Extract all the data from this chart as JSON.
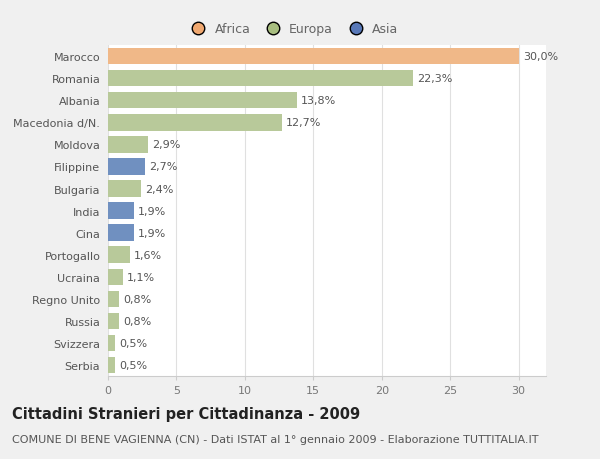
{
  "categories": [
    "Serbia",
    "Svizzera",
    "Russia",
    "Regno Unito",
    "Ucraina",
    "Portogallo",
    "Cina",
    "India",
    "Bulgaria",
    "Filippine",
    "Moldova",
    "Macedonia d/N.",
    "Albania",
    "Romania",
    "Marocco"
  ],
  "values": [
    0.5,
    0.5,
    0.8,
    0.8,
    1.1,
    1.6,
    1.9,
    1.9,
    2.4,
    2.7,
    2.9,
    12.7,
    13.8,
    22.3,
    30.0
  ],
  "labels": [
    "0,5%",
    "0,5%",
    "0,8%",
    "0,8%",
    "1,1%",
    "1,6%",
    "1,9%",
    "1,9%",
    "2,4%",
    "2,7%",
    "2,9%",
    "12,7%",
    "13,8%",
    "22,3%",
    "30,0%"
  ],
  "continents": [
    "Europa",
    "Europa",
    "Europa",
    "Europa",
    "Europa",
    "Europa",
    "Asia",
    "Asia",
    "Europa",
    "Asia",
    "Europa",
    "Europa",
    "Europa",
    "Europa",
    "Africa"
  ],
  "bar_colors": {
    "Africa": "#F0B888",
    "Europa": "#B8C99A",
    "Asia": "#7090C0"
  },
  "legend_colors": {
    "Africa": "#F0A870",
    "Europa": "#A8BE80",
    "Asia": "#5878B8"
  },
  "xlim": [
    0,
    32
  ],
  "xticks": [
    0,
    5,
    10,
    15,
    20,
    25,
    30
  ],
  "title": "Cittadini Stranieri per Cittadinanza - 2009",
  "subtitle": "COMUNE DI BENE VAGIENNA (CN) - Dati ISTAT al 1° gennaio 2009 - Elaborazione TUTTITALIA.IT",
  "bg_color": "#f0f0f0",
  "chart_bg": "#ffffff",
  "bar_height": 0.75,
  "title_fontsize": 10.5,
  "subtitle_fontsize": 8,
  "label_fontsize": 8,
  "tick_fontsize": 8,
  "legend_fontsize": 9
}
